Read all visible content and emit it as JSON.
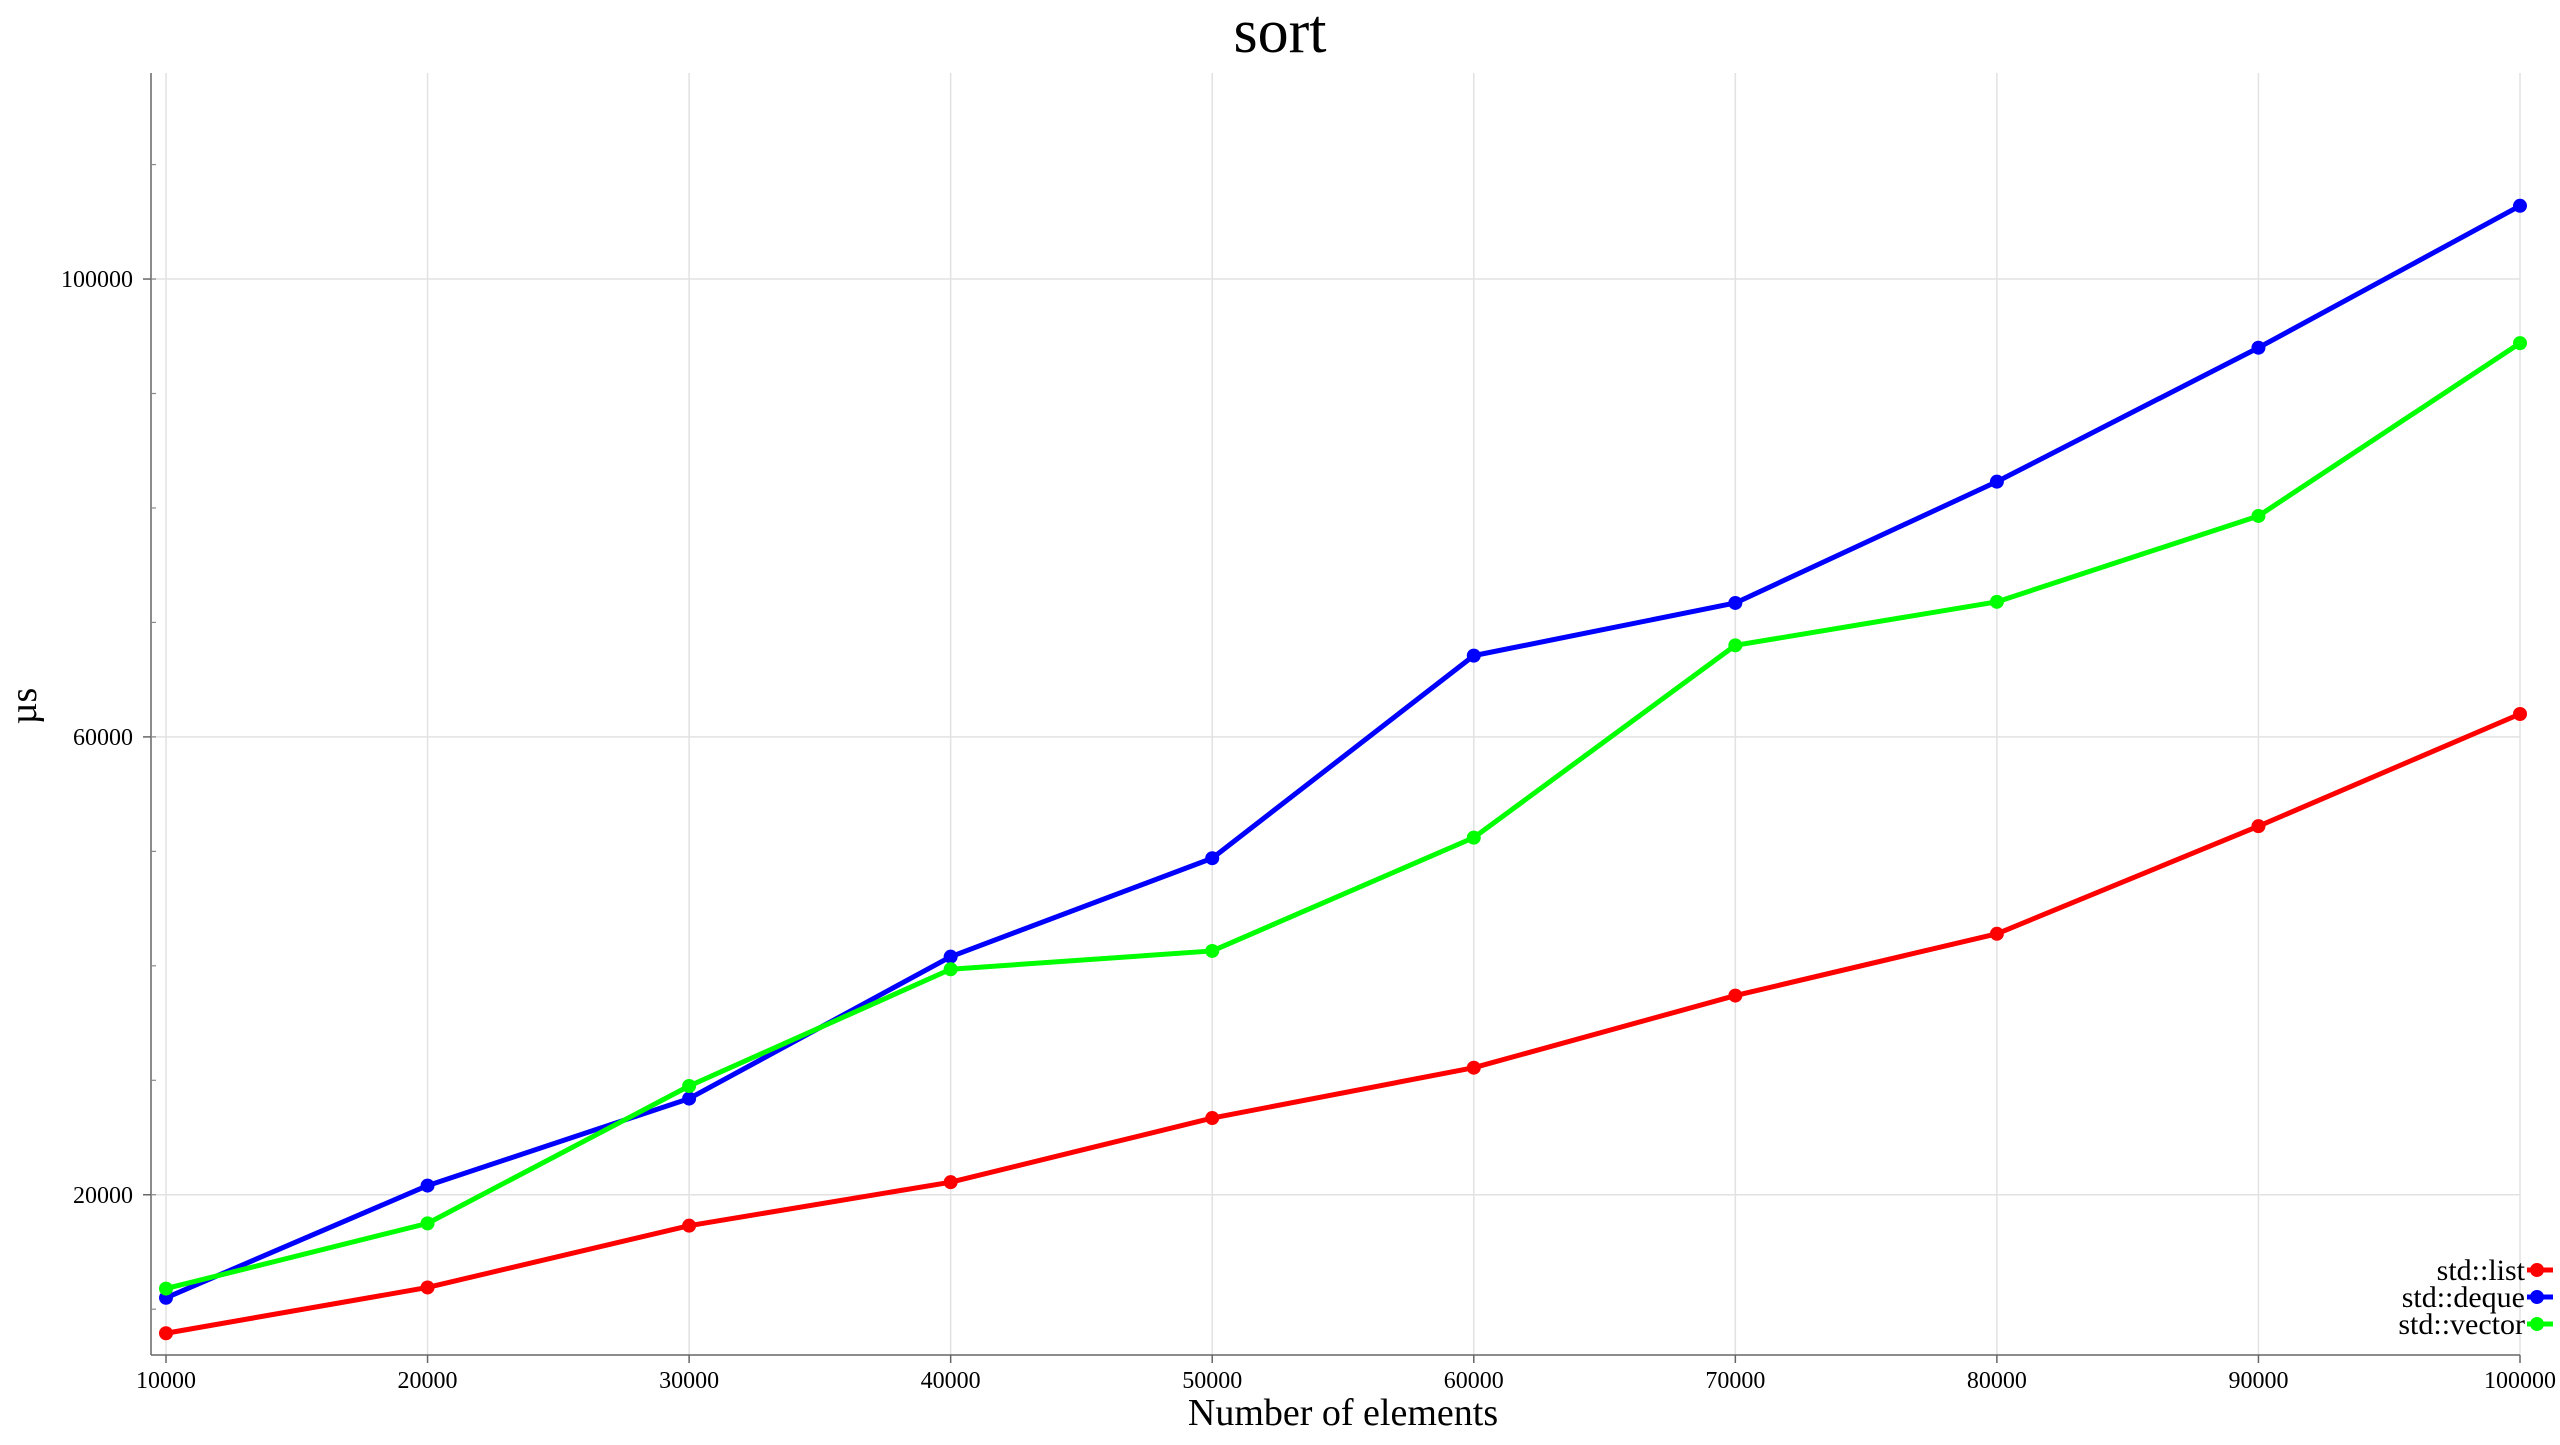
{
  "chart_data": {
    "type": "line",
    "title": "sort",
    "xlabel": "Number of elements",
    "ylabel": "µs",
    "x": [
      10000,
      20000,
      30000,
      40000,
      50000,
      60000,
      70000,
      80000,
      90000,
      100000
    ],
    "xlim": [
      10000,
      100000
    ],
    "ylim": [
      6000,
      118000
    ],
    "x_ticks": [
      "10000",
      "20000",
      "30000",
      "40000",
      "50000",
      "60000",
      "70000",
      "80000",
      "90000",
      "100000"
    ],
    "y_ticks": [
      "20000",
      "60000",
      "100000"
    ],
    "y_tick_values": [
      20000,
      60000,
      100000
    ],
    "y_minor_step": 10000,
    "grid": true,
    "legend_position": "bottom-right",
    "series": [
      {
        "name": "std::list",
        "color": "#ff0000",
        "values": [
          7900,
          11900,
          17300,
          21100,
          26700,
          31100,
          37400,
          42800,
          52200,
          62000
        ]
      },
      {
        "name": "std::deque",
        "color": "#0000ff",
        "values": [
          11000,
          20800,
          28400,
          40800,
          49400,
          67100,
          71700,
          82300,
          94000,
          106400
        ]
      },
      {
        "name": "std::vector",
        "color": "#00ff00",
        "values": [
          11800,
          17500,
          29500,
          39700,
          41300,
          51200,
          68000,
          71800,
          79300,
          94400
        ]
      }
    ]
  }
}
